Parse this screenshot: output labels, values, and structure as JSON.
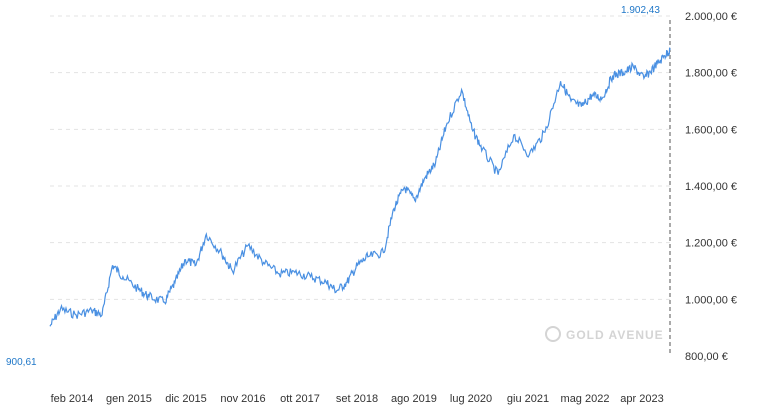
{
  "chart_data": {
    "type": "line",
    "title": "",
    "xlabel": "",
    "ylabel": "",
    "x_ticks": [
      "feb 2014",
      "gen 2015",
      "dic 2015",
      "nov 2016",
      "ott 2017",
      "set 2018",
      "ago 2019",
      "lug 2020",
      "giu 2021",
      "mag 2022",
      "apr 2023"
    ],
    "y_ticks": [
      2000,
      1800,
      1600,
      1400,
      1200,
      1000,
      800
    ],
    "y_tick_labels": [
      "2.000,00 €",
      "1.800,00 €",
      "1.600,00 €",
      "1.400,00 €",
      "1.200,00 €",
      "1.000,00 €",
      "800,00 €"
    ],
    "ylim": [
      800,
      2000
    ],
    "grid": true,
    "line_color": "#4a90e2",
    "series": [
      {
        "x": [
          "2014-01",
          "2014-03",
          "2014-06",
          "2014-09",
          "2014-11",
          "2015-01",
          "2015-03",
          "2015-06",
          "2015-08",
          "2015-11",
          "2016-01",
          "2016-03",
          "2016-05",
          "2016-07",
          "2016-10",
          "2016-12",
          "2017-03",
          "2017-06",
          "2017-09",
          "2017-12",
          "2018-03",
          "2018-06",
          "2018-08",
          "2018-10",
          "2018-12",
          "2019-02",
          "2019-05",
          "2019-07",
          "2019-09",
          "2019-11",
          "2020-01",
          "2020-03",
          "2020-05",
          "2020-08",
          "2020-10",
          "2020-12",
          "2021-03",
          "2021-06",
          "2021-09",
          "2021-12",
          "2022-03",
          "2022-05",
          "2022-07",
          "2022-09",
          "2022-11",
          "2023-01",
          "2023-03",
          "2023-05",
          "2023-07",
          "2023-09",
          "2023-11",
          "2023-12"
        ],
        "values": [
          905,
          965,
          945,
          960,
          945,
          1120,
          1080,
          1035,
          1010,
          990,
          1060,
          1140,
          1120,
          1230,
          1160,
          1100,
          1190,
          1130,
          1090,
          1095,
          1080,
          1060,
          1030,
          1060,
          1120,
          1150,
          1165,
          1320,
          1395,
          1350,
          1430,
          1480,
          1610,
          1740,
          1600,
          1530,
          1440,
          1580,
          1510,
          1590,
          1770,
          1700,
          1680,
          1720,
          1710,
          1790,
          1800,
          1820,
          1780,
          1820,
          1860,
          1880
        ]
      }
    ],
    "highlights": {
      "max_label": "1.902,43",
      "min_label": "900,61"
    },
    "watermark": "GOLD AVENUE"
  }
}
